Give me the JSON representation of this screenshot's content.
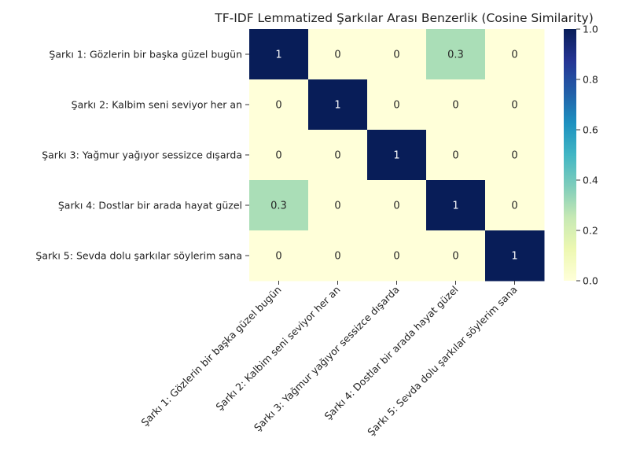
{
  "chart_data": {
    "type": "heatmap",
    "title": "TF-IDF Lemmatized Şarkılar Arası Benzerlik (Cosine Similarity)",
    "xlabel": "",
    "ylabel": "",
    "rows": [
      "Şarkı 1: Gözlerin bir başka güzel bugün",
      "Şarkı 2: Kalbim seni seviyor her an",
      "Şarkı 3: Yağmur yağıyor sessizce dışarda",
      "Şarkı 4: Dostlar bir arada hayat güzel",
      "Şarkı 5: Sevda dolu şarkılar söylerim sana"
    ],
    "columns": [
      "Şarkı 1: Gözlerin bir başka güzel bugün",
      "Şarkı 2: Kalbim seni seviyor her an",
      "Şarkı 3: Yağmur yağıyor sessizce dışarda",
      "Şarkı 4: Dostlar bir arada hayat güzel",
      "Şarkı 5: Sevda dolu şarkılar söylerim sana"
    ],
    "values": [
      [
        1,
        0,
        0,
        0.3,
        0
      ],
      [
        0,
        1,
        0,
        0,
        0
      ],
      [
        0,
        0,
        1,
        0,
        0
      ],
      [
        0.3,
        0,
        0,
        1,
        0
      ],
      [
        0,
        0,
        0,
        0,
        1
      ]
    ],
    "cell_labels": [
      [
        "1",
        "0",
        "0",
        "0.3",
        "0"
      ],
      [
        "0",
        "1",
        "0",
        "0",
        "0"
      ],
      [
        "0",
        "0",
        "1",
        "0",
        "0"
      ],
      [
        "0.3",
        "0",
        "0",
        "1",
        "0"
      ],
      [
        "0",
        "0",
        "0",
        "0",
        "1"
      ]
    ],
    "colormap": "YlGnBu",
    "color_range": [
      0,
      1
    ],
    "colorbar": {
      "ticks": [
        0.0,
        0.2,
        0.4,
        0.6,
        0.8,
        1.0
      ],
      "tick_labels": [
        "0.0",
        "0.2",
        "0.4",
        "0.6",
        "0.8",
        "1.0"
      ]
    }
  }
}
